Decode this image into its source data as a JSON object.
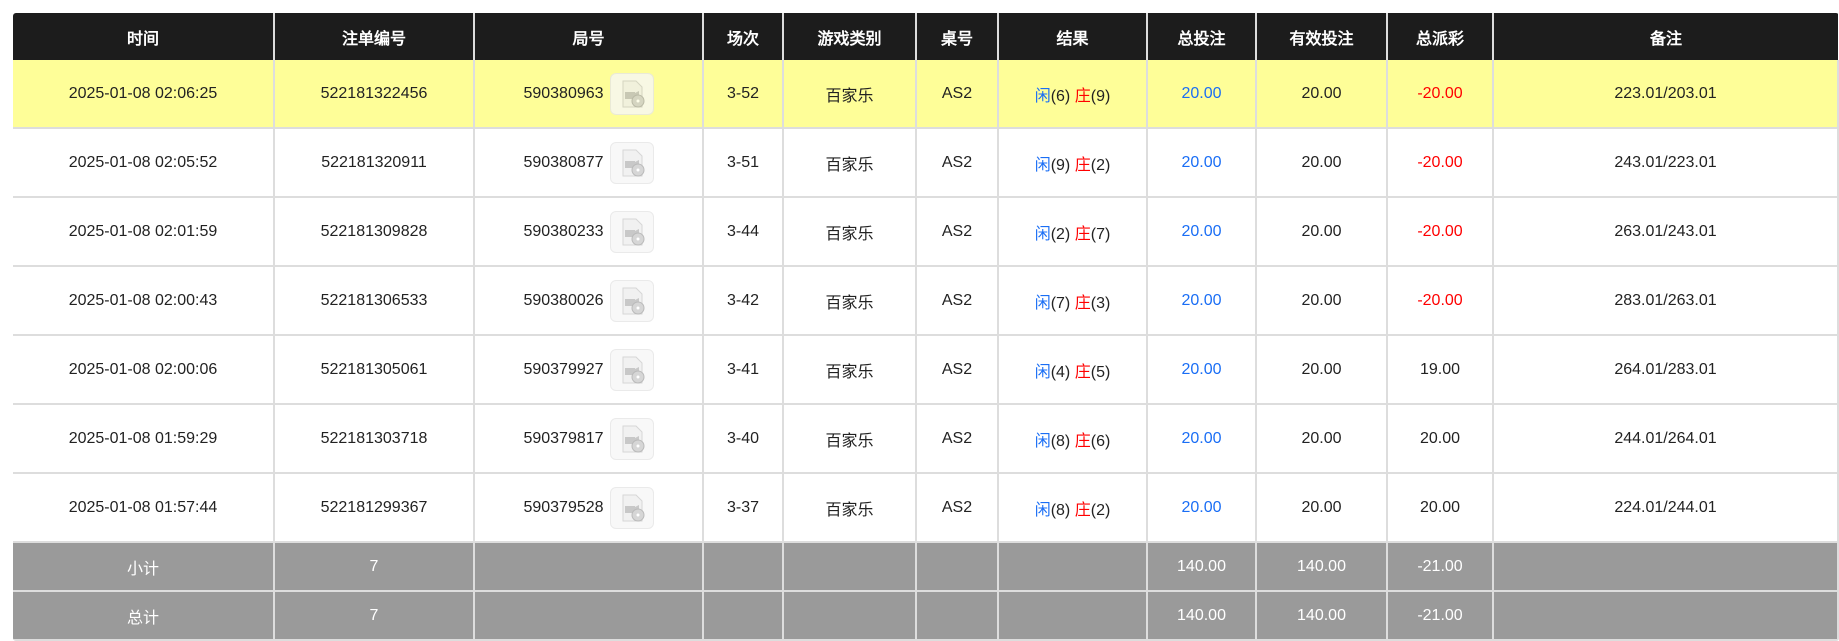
{
  "headers": [
    "时间",
    "注单编号",
    "局号",
    "场次",
    "游戏类别",
    "桌号",
    "结果",
    "总投注",
    "有效投注",
    "总派彩",
    "备注"
  ],
  "rows": [
    {
      "time": "2025-01-08 02:06:25",
      "bet_id": "522181322456",
      "round": "590380963",
      "shoe": "3-52",
      "game": "百家乐",
      "table": "AS2",
      "player_label": "闲",
      "player": "(6)",
      "banker_label": "庄",
      "banker": "(9)",
      "total_bet": "20.00",
      "valid_bet": "20.00",
      "payout": "-20.00",
      "payout_negative": true,
      "note": "223.01/203.01",
      "highlighted": true
    },
    {
      "time": "2025-01-08 02:05:52",
      "bet_id": "522181320911",
      "round": "590380877",
      "shoe": "3-51",
      "game": "百家乐",
      "table": "AS2",
      "player_label": "闲",
      "player": "(9)",
      "banker_label": "庄",
      "banker": "(2)",
      "total_bet": "20.00",
      "valid_bet": "20.00",
      "payout": "-20.00",
      "payout_negative": true,
      "note": "243.01/223.01"
    },
    {
      "time": "2025-01-08 02:01:59",
      "bet_id": "522181309828",
      "round": "590380233",
      "shoe": "3-44",
      "game": "百家乐",
      "table": "AS2",
      "player_label": "闲",
      "player": "(2)",
      "banker_label": "庄",
      "banker": "(7)",
      "total_bet": "20.00",
      "valid_bet": "20.00",
      "payout": "-20.00",
      "payout_negative": true,
      "note": "263.01/243.01"
    },
    {
      "time": "2025-01-08 02:00:43",
      "bet_id": "522181306533",
      "round": "590380026",
      "shoe": "3-42",
      "game": "百家乐",
      "table": "AS2",
      "player_label": "闲",
      "player": "(7)",
      "banker_label": "庄",
      "banker": "(3)",
      "total_bet": "20.00",
      "valid_bet": "20.00",
      "payout": "-20.00",
      "payout_negative": true,
      "note": "283.01/263.01"
    },
    {
      "time": "2025-01-08 02:00:06",
      "bet_id": "522181305061",
      "round": "590379927",
      "shoe": "3-41",
      "game": "百家乐",
      "table": "AS2",
      "player_label": "闲",
      "player": "(4)",
      "banker_label": "庄",
      "banker": "(5)",
      "total_bet": "20.00",
      "valid_bet": "20.00",
      "payout": "19.00",
      "payout_negative": false,
      "note": "264.01/283.01"
    },
    {
      "time": "2025-01-08 01:59:29",
      "bet_id": "522181303718",
      "round": "590379817",
      "shoe": "3-40",
      "game": "百家乐",
      "table": "AS2",
      "player_label": "闲",
      "player": "(8)",
      "banker_label": "庄",
      "banker": "(6)",
      "total_bet": "20.00",
      "valid_bet": "20.00",
      "payout": "20.00",
      "payout_negative": false,
      "note": "244.01/264.01"
    },
    {
      "time": "2025-01-08 01:57:44",
      "bet_id": "522181299367",
      "round": "590379528",
      "shoe": "3-37",
      "game": "百家乐",
      "table": "AS2",
      "player_label": "闲",
      "player": "(8)",
      "banker_label": "庄",
      "banker": "(2)",
      "total_bet": "20.00",
      "valid_bet": "20.00",
      "payout": "20.00",
      "payout_negative": false,
      "note": "224.01/244.01"
    }
  ],
  "summary": [
    {
      "label": "小计",
      "count": "7",
      "total_bet": "140.00",
      "valid_bet": "140.00",
      "payout": "-21.00"
    },
    {
      "label": "总计",
      "count": "7",
      "total_bet": "140.00",
      "valid_bet": "140.00",
      "payout": "-21.00"
    }
  ],
  "colors": {
    "header_bg": "#1c1c1c",
    "highlight": "#fefe98",
    "summary_bg": "#9a9a9a",
    "blue": "#1a6ef5",
    "red": "#ff0000"
  },
  "icons": {
    "replay": "video-replay-icon"
  }
}
